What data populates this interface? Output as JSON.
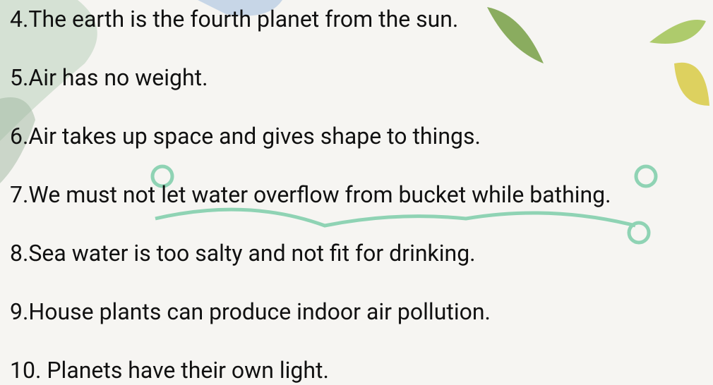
{
  "statements": [
    "4.The earth is the fourth planet from the sun.",
    "5.Air has no weight.",
    "6.Air takes up space and gives shape to things.",
    "7.We must not let water overflow from bucket while bathing.",
    "8.Sea water is too salty and not fit for drinking.",
    "9.House plants can produce indoor air pollution.",
    "10. Planets have their own light."
  ]
}
